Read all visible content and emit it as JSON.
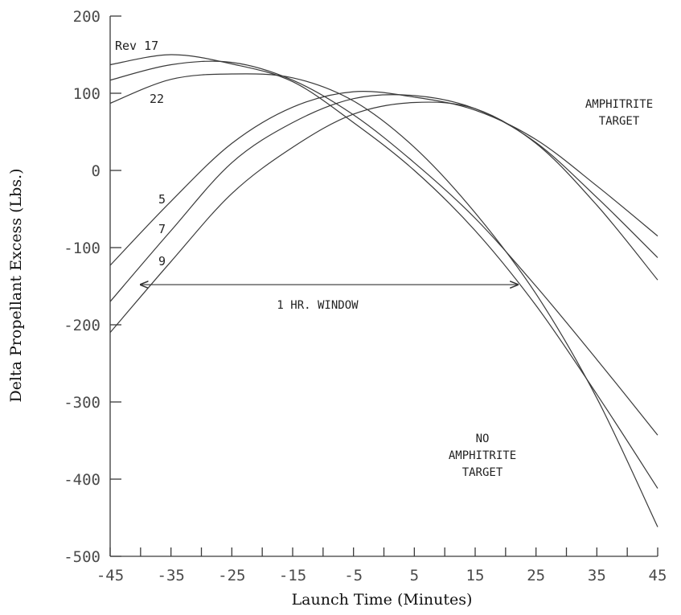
{
  "chart_data": {
    "type": "line",
    "xlabel": "Launch Time (Minutes)",
    "ylabel": "Delta Propellant Excess (Lbs.)",
    "xlim": [
      -45,
      45
    ],
    "ylim": [
      -500,
      200
    ],
    "x_ticks": [
      -45,
      -35,
      -25,
      -15,
      -5,
      5,
      15,
      25,
      35,
      45
    ],
    "y_ticks": [
      200,
      100,
      0,
      -100,
      -200,
      -300,
      -400,
      -500
    ],
    "x_minor_step": 5,
    "series": [
      {
        "name": "Rev 17",
        "x": [
          -45,
          -35,
          -25,
          -15,
          -5,
          5,
          15,
          25,
          35,
          45
        ],
        "y": [
          137,
          150,
          138,
          115,
          62,
          0,
          -78,
          -175,
          -290,
          -412
        ]
      },
      {
        "name": "",
        "x": [
          -45,
          -35,
          -25,
          -15,
          -5,
          5,
          15,
          25,
          35,
          45
        ],
        "y": [
          117,
          137,
          140,
          117,
          72,
          10,
          -62,
          -150,
          -245,
          -343
        ]
      },
      {
        "name": "22",
        "x": [
          -45,
          -35,
          -25,
          -15,
          -5,
          5,
          15,
          25,
          35,
          45
        ],
        "y": [
          87,
          118,
          125,
          120,
          90,
          30,
          -55,
          -160,
          -295,
          -462
        ]
      },
      {
        "name": "5",
        "x": [
          -45,
          -35,
          -25,
          -15,
          -5,
          5,
          15,
          25,
          35,
          45
        ],
        "y": [
          -123,
          -40,
          35,
          82,
          102,
          95,
          78,
          40,
          -20,
          -85
        ]
      },
      {
        "name": "7",
        "x": [
          -45,
          -35,
          -25,
          -15,
          -5,
          5,
          15,
          25,
          35,
          45
        ],
        "y": [
          -170,
          -78,
          10,
          62,
          93,
          97,
          80,
          36,
          -35,
          -113
        ]
      },
      {
        "name": "9",
        "x": [
          -45,
          -35,
          -25,
          -15,
          -5,
          5,
          15,
          25,
          35,
          45
        ],
        "y": [
          -210,
          -118,
          -30,
          30,
          73,
          88,
          80,
          35,
          -45,
          -142
        ]
      }
    ],
    "annotations": [
      {
        "text": "1 HR. WINDOW",
        "arrow_x": [
          -40,
          22
        ],
        "y": -148
      },
      {
        "text_lines": [
          "AMPHITRITE",
          "TARGET"
        ]
      },
      {
        "text_lines": [
          "NO",
          "AMPHITRITE",
          "TARGET"
        ]
      }
    ]
  }
}
